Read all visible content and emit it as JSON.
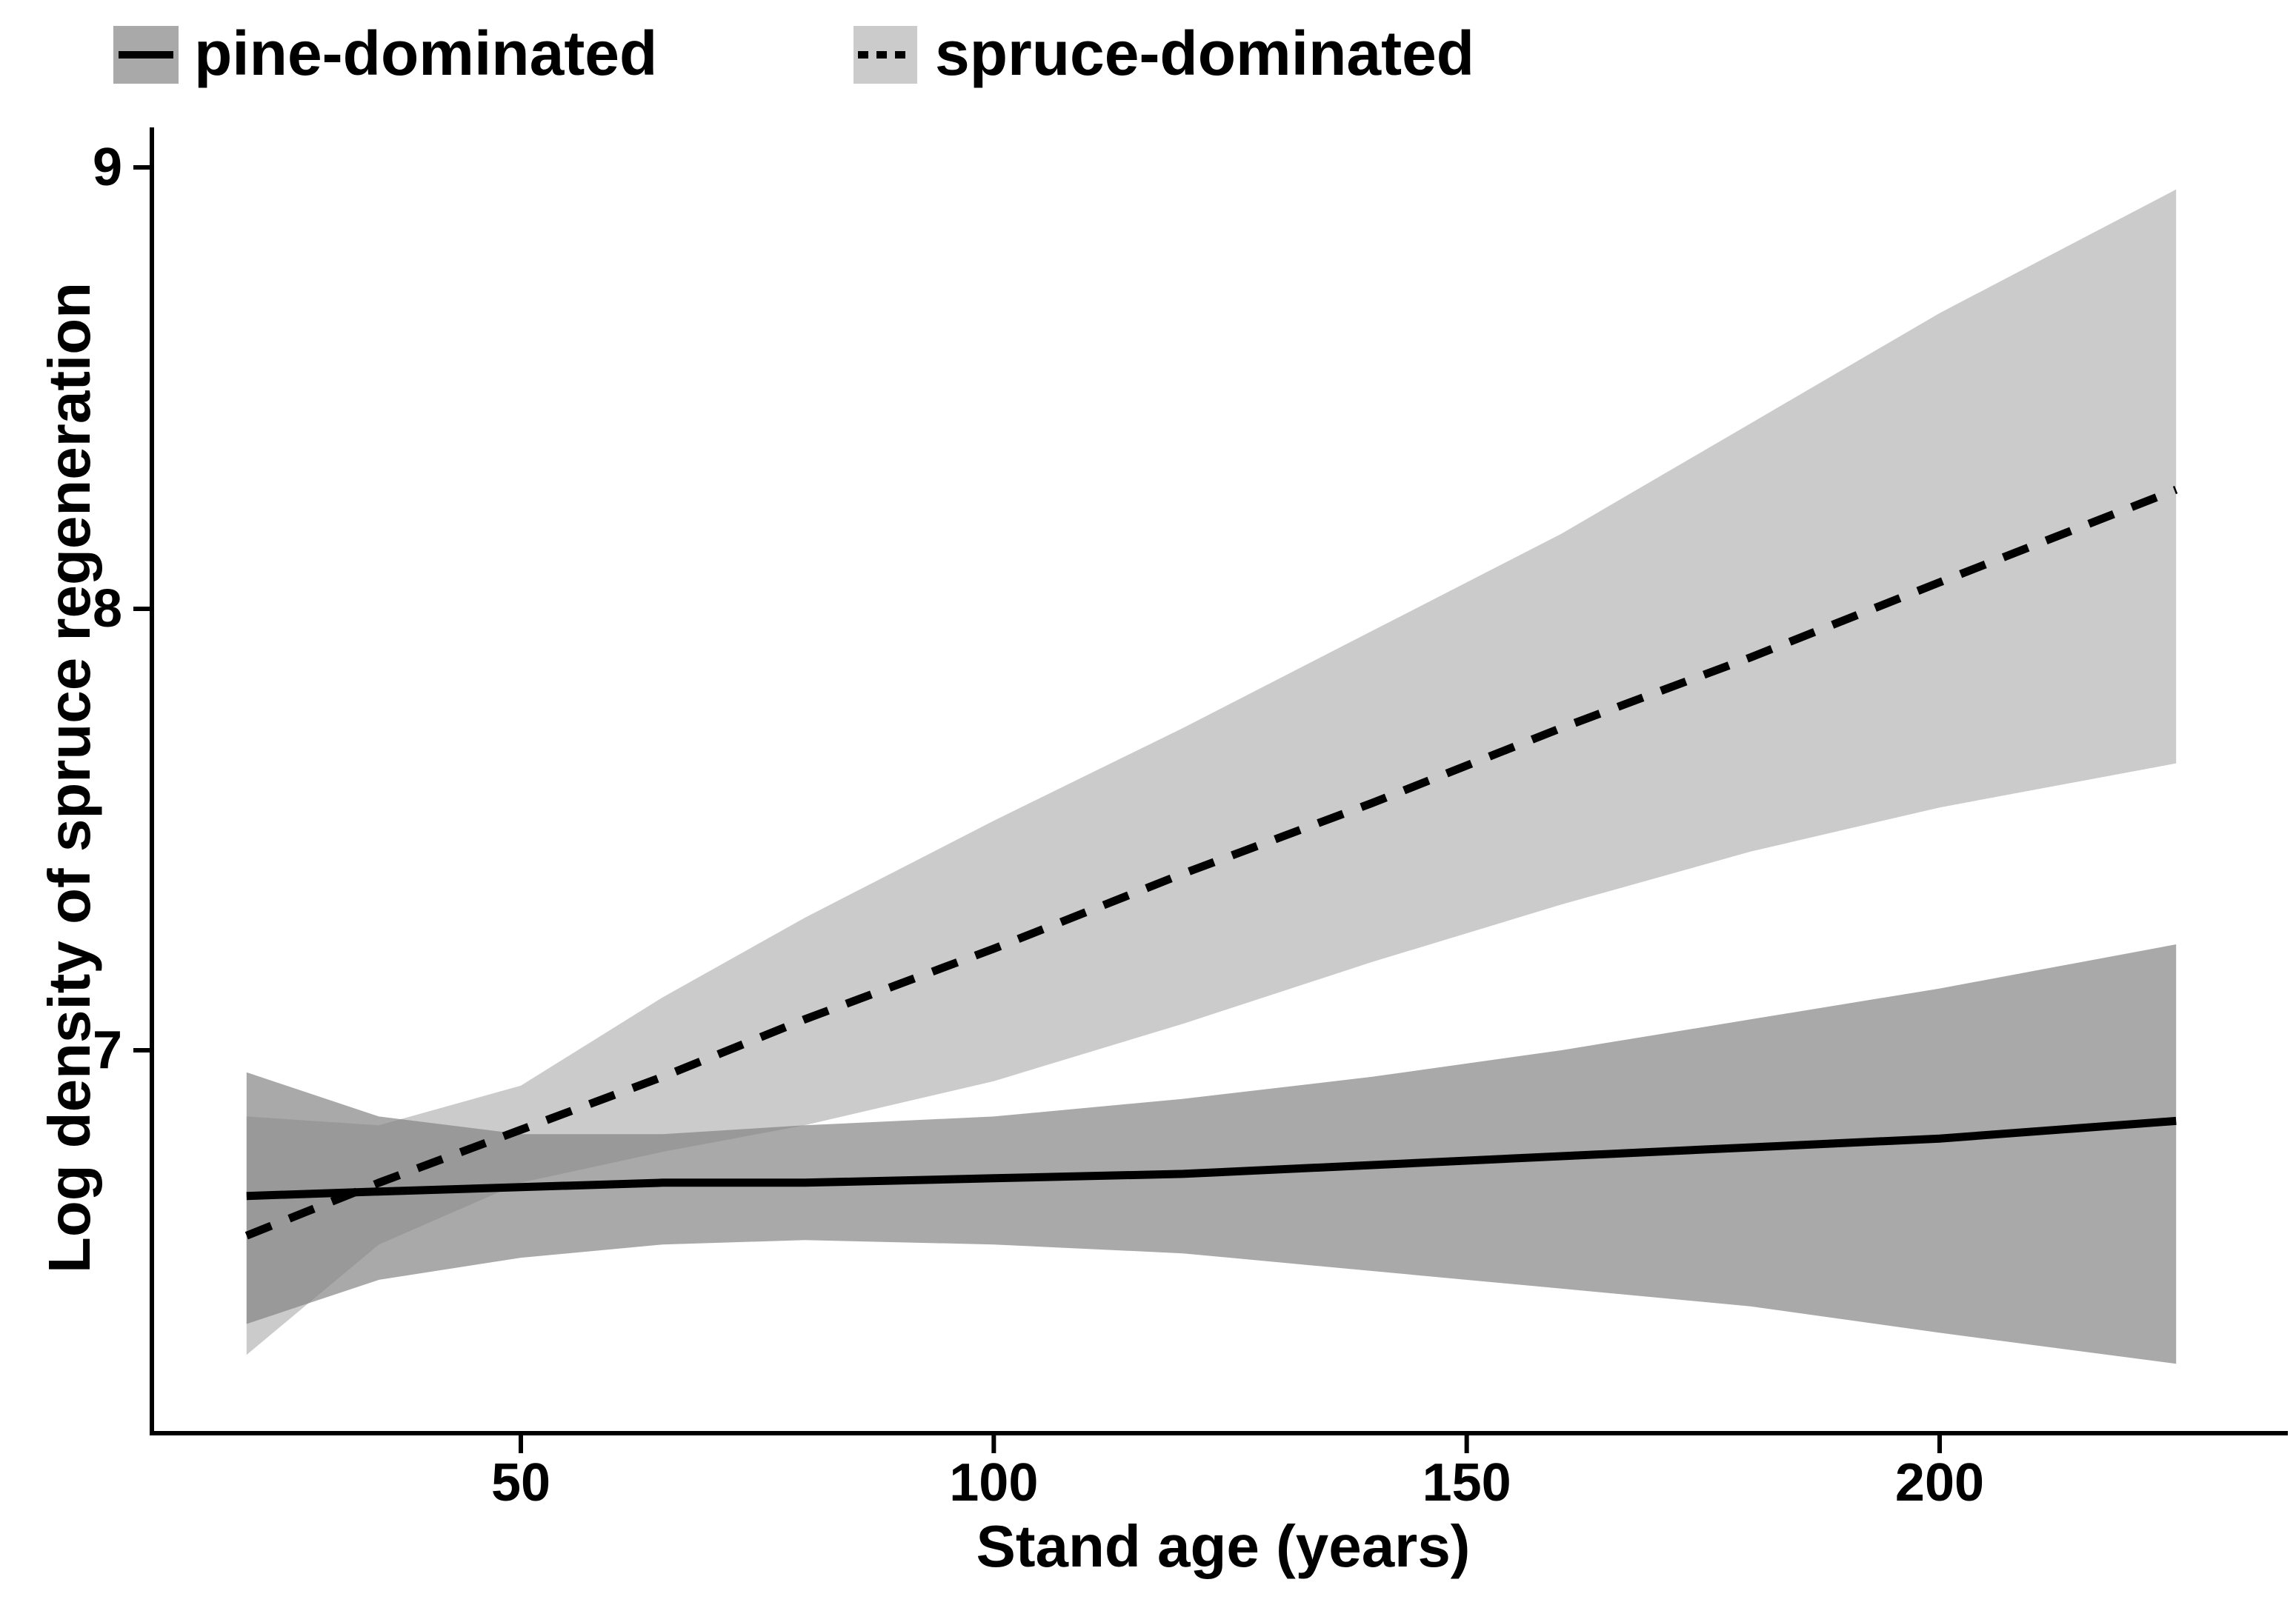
{
  "legend": {
    "items": [
      {
        "label": "pine-dominated",
        "key_style": "solid-line",
        "key_fill": "#a9a9a9"
      },
      {
        "label": "spruce-dominated",
        "key_style": "dashed-line",
        "key_fill": "#cbcbcb"
      }
    ]
  },
  "chart_data": {
    "type": "line",
    "title": "",
    "xlabel": "Stand age (years)",
    "ylabel": "Log density of spruce regeneration",
    "x_ticks": [
      50,
      100,
      150,
      200
    ],
    "y_ticks": [
      7,
      8,
      9
    ],
    "xlim": [
      11,
      237
    ],
    "ylim": [
      6.13,
      9.09
    ],
    "grid": false,
    "legend_position": "top-left",
    "line_color": "#000000",
    "axis_color": "#000000",
    "x": [
      21,
      35,
      50,
      65,
      80,
      100,
      120,
      140,
      160,
      180,
      200,
      225
    ],
    "series": [
      {
        "name": "pine-dominated",
        "style": "solid",
        "color": "#000000",
        "ribbon_fill": "#838383",
        "ribbon_opacity": 0.69,
        "values": [
          6.67,
          6.68,
          6.69,
          6.7,
          6.7,
          6.71,
          6.72,
          6.74,
          6.76,
          6.78,
          6.8,
          6.84
        ],
        "ci_upper": [
          6.95,
          6.85,
          6.81,
          6.81,
          6.83,
          6.85,
          6.89,
          6.94,
          7.0,
          7.07,
          7.14,
          7.24
        ],
        "ci_lower": [
          6.38,
          6.48,
          6.53,
          6.56,
          6.57,
          6.56,
          6.54,
          6.5,
          6.46,
          6.42,
          6.36,
          6.29
        ]
      },
      {
        "name": "spruce-dominated",
        "style": "dashed",
        "color": "#000000",
        "ribbon_fill": "#cbcbcb",
        "ribbon_opacity": 1,
        "values": [
          6.58,
          6.7,
          6.82,
          6.94,
          7.07,
          7.23,
          7.4,
          7.56,
          7.73,
          7.89,
          8.06,
          8.27
        ],
        "ci_upper": [
          6.85,
          6.83,
          6.92,
          7.12,
          7.3,
          7.52,
          7.73,
          7.95,
          8.17,
          8.42,
          8.67,
          8.95
        ],
        "ci_lower": [
          6.31,
          6.56,
          6.7,
          6.77,
          6.83,
          6.93,
          7.06,
          7.2,
          7.33,
          7.45,
          7.55,
          7.65
        ]
      }
    ]
  }
}
